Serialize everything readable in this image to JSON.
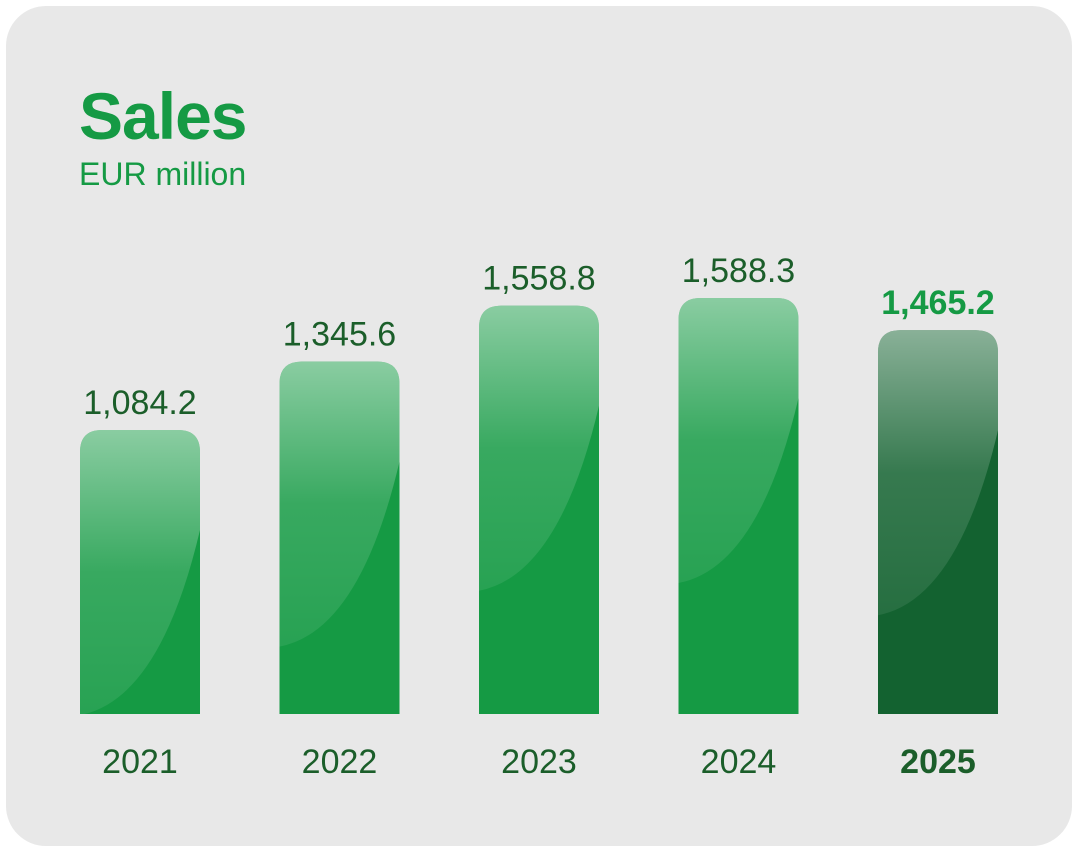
{
  "chart_data": {
    "type": "bar",
    "title": "Sales",
    "subtitle": "EUR million",
    "categories": [
      "2021",
      "2022",
      "2023",
      "2024",
      "2025"
    ],
    "values": [
      1084.2,
      1345.6,
      1558.8,
      1588.3,
      1465.2
    ],
    "value_labels": [
      "1,084.2",
      "1,345.6",
      "1,558.8",
      "1,588.3",
      "1,465.2"
    ],
    "highlighted_category": "2025",
    "ylim": [
      0,
      1588.3
    ],
    "grid": false,
    "colors": {
      "bar": "#159a44",
      "highlight_bar": "#136230",
      "label": "#1b5e2a",
      "highlight_label": "#159a44",
      "title": "#159a44",
      "background": "#e8e8e8"
    }
  }
}
